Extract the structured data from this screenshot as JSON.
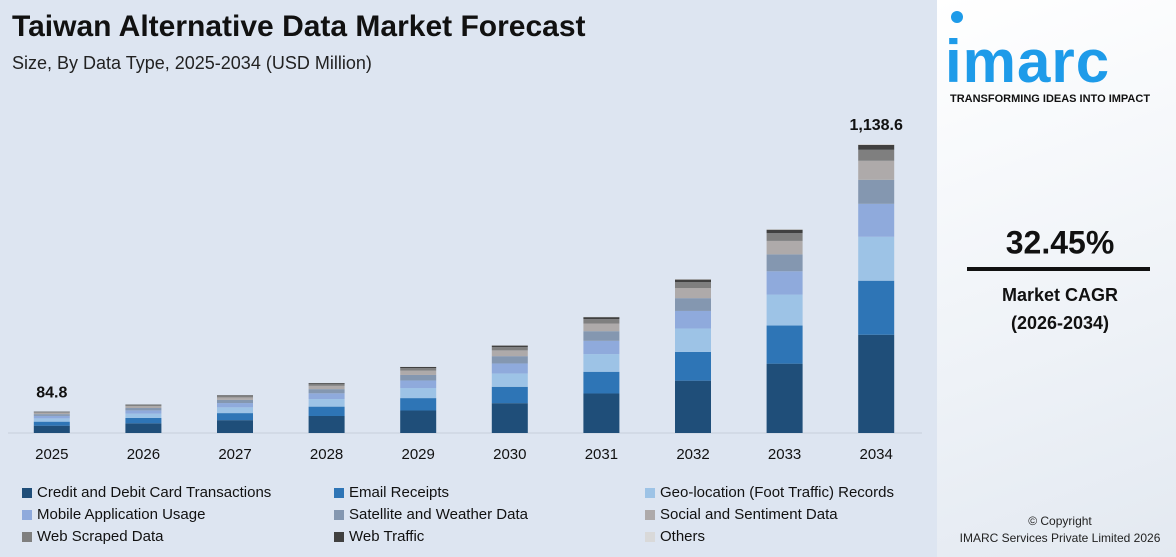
{
  "chart_data": {
    "type": "stacked_bar",
    "title": "Taiwan Alternative Data Market Forecast",
    "subtitle": "Size, By Data Type, 2025-2034 (USD Million)",
    "categories": [
      "2025",
      "2026",
      "2027",
      "2028",
      "2029",
      "2030",
      "2031",
      "2032",
      "2033",
      "2034"
    ],
    "series": [
      {
        "name": "Credit and Debit Card Transactions",
        "color": "#1f4e79",
        "values": [
          28.8,
          38.2,
          50.6,
          67.0,
          88.7,
          117.5,
          155.7,
          206.2,
          273.2,
          387.1
        ]
      },
      {
        "name": "Email Receipts",
        "color": "#2e75b6",
        "values": [
          15.9,
          21.0,
          27.8,
          36.9,
          48.8,
          64.6,
          85.6,
          113.4,
          150.2,
          212.9
        ]
      },
      {
        "name": "Geo-location (Foot Traffic) Records",
        "color": "#9dc3e6",
        "values": [
          12.9,
          17.1,
          22.6,
          30.0,
          39.7,
          52.5,
          69.6,
          92.2,
          122.1,
          173.1
        ]
      },
      {
        "name": "Mobile Application Usage",
        "color": "#8faadc",
        "values": [
          9.7,
          12.8,
          17.0,
          22.5,
          29.8,
          39.4,
          52.2,
          69.1,
          91.6,
          129.8
        ]
      },
      {
        "name": "Satellite and Weather Data",
        "color": "#8497b0",
        "values": [
          7.0,
          9.3,
          12.4,
          16.4,
          21.7,
          28.7,
          38.0,
          50.3,
          66.7,
          94.5
        ]
      },
      {
        "name": "Social and Sentiment Data",
        "color": "#aeaaaa",
        "values": [
          5.6,
          7.4,
          9.8,
          13.0,
          17.2,
          22.8,
          30.2,
          40.0,
          53.0,
          75.1
        ]
      },
      {
        "name": "Web Scraped Data",
        "color": "#7f7f7f",
        "values": [
          3.2,
          4.3,
          5.7,
          7.5,
          9.9,
          13.1,
          17.4,
          23.0,
          30.5,
          43.3
        ]
      },
      {
        "name": "Web Traffic",
        "color": "#404040",
        "values": [
          1.4,
          1.9,
          2.5,
          3.4,
          4.4,
          5.9,
          7.8,
          10.3,
          13.7,
          19.4
        ]
      },
      {
        "name": "Others",
        "color": "#d9d9d9",
        "values": [
          0.3,
          0.4,
          0.5,
          0.6,
          0.8,
          1.0,
          1.4,
          1.8,
          2.4,
          3.4
        ]
      }
    ],
    "total_labels": [
      "84.8",
      null,
      null,
      null,
      null,
      null,
      null,
      null,
      null,
      "1,138.6"
    ]
  },
  "sidebar": {
    "logo": "imarc",
    "tagline": "TRANSFORMING IDEAS INTO IMPACT",
    "cagr": "32.45%",
    "cagr_label": "Market CAGR",
    "cagr_period": "(2026-2034)",
    "copyright": "© Copyright",
    "company": "IMARC Services Private Limited 2026"
  }
}
